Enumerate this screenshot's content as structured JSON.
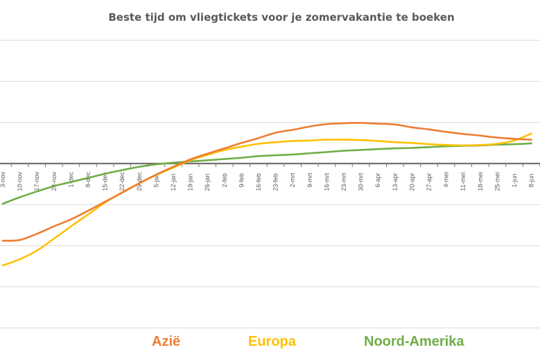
{
  "chart_data": {
    "type": "line",
    "title": "Beste tijd om vliegtickets voor je zomervakantie te boeken",
    "xlabel": "",
    "ylabel": "",
    "grid": true,
    "legend_position": "bottom",
    "ylim": [
      -4,
      3
    ],
    "x": [
      "3-nov",
      "10-nov",
      "17-nov",
      "24-nov",
      "1-dec",
      "8-dec",
      "15-dec",
      "22-dec",
      "29-dec",
      "5-jan",
      "12-jan",
      "19-jan",
      "26-jan",
      "2-feb",
      "9-feb",
      "16-feb",
      "23-feb",
      "2-mrt",
      "9-mrt",
      "16-mrt",
      "23-mrt",
      "30-mrt",
      "6-apr",
      "13-apr",
      "20-apr",
      "27-apr",
      "4-mei",
      "11-mei",
      "18-mei",
      "25-mei",
      "1-jun",
      "8-jun"
    ],
    "series": [
      {
        "name": "Azië",
        "color": "#ED7D31",
        "values": [
          -1.88,
          -1.86,
          -1.71,
          -1.53,
          -1.36,
          -1.15,
          -0.93,
          -0.71,
          -0.48,
          -0.27,
          -0.08,
          0.1,
          0.24,
          0.37,
          0.5,
          0.62,
          0.75,
          0.82,
          0.9,
          0.96,
          0.98,
          0.99,
          0.97,
          0.95,
          0.88,
          0.83,
          0.77,
          0.72,
          0.68,
          0.63,
          0.6,
          0.58
        ]
      },
      {
        "name": "Europa",
        "color": "#FFC000",
        "values": [
          -2.48,
          -2.33,
          -2.12,
          -1.83,
          -1.53,
          -1.24,
          -0.95,
          -0.7,
          -0.48,
          -0.28,
          -0.1,
          0.08,
          0.21,
          0.33,
          0.41,
          0.48,
          0.52,
          0.55,
          0.56,
          0.58,
          0.58,
          0.57,
          0.55,
          0.52,
          0.5,
          0.47,
          0.45,
          0.44,
          0.45,
          0.48,
          0.56,
          0.73
        ]
      },
      {
        "name": "Noord-Amerika",
        "color": "#70AD47",
        "values": [
          -0.98,
          -0.82,
          -0.68,
          -0.55,
          -0.45,
          -0.35,
          -0.25,
          -0.16,
          -0.08,
          -0.02,
          0.02,
          0.05,
          0.08,
          0.11,
          0.14,
          0.18,
          0.2,
          0.22,
          0.25,
          0.28,
          0.31,
          0.33,
          0.35,
          0.37,
          0.38,
          0.4,
          0.42,
          0.43,
          0.44,
          0.46,
          0.47,
          0.49
        ]
      }
    ]
  }
}
